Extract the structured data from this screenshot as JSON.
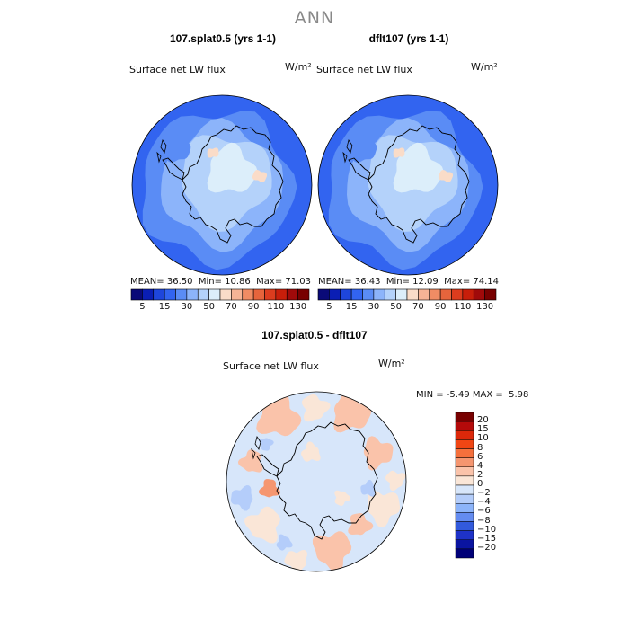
{
  "figure": {
    "title": "ANN"
  },
  "panels": [
    {
      "title": "107.splat0.5 (yrs 1-1)",
      "variable": "Surface net LW flux",
      "units": "W/m²",
      "stats": {
        "mean_label": "MEAN=",
        "mean": "36.50",
        "min_label": "Min=",
        "min": "10.86",
        "max_label": "Max=",
        "max": "71.03"
      }
    },
    {
      "title": "dflt107 (yrs 1-1)",
      "variable": "Surface net LW flux",
      "units": "W/m²",
      "stats": {
        "mean_label": "MEAN=",
        "mean": "36.43",
        "min_label": "Min=",
        "min": "12.09",
        "max_label": "Max=",
        "max": "74.14"
      }
    },
    {
      "title": "107.splat0.5 - dflt107",
      "variable": "Surface net LW flux",
      "units": "W/m²",
      "stats": {
        "min_label": "MIN =",
        "min": "-5.49",
        "max_label": "MAX =",
        "max": "5.98"
      }
    }
  ],
  "chart_data": [
    {
      "type": "heatmap",
      "projection": "south-polar-stereographic",
      "title": "107.splat0.5 (yrs 1-1)",
      "variable": "Surface net LW flux",
      "units": "W/m²",
      "mean": 36.5,
      "min": 10.86,
      "max": 71.03,
      "colorbar": {
        "orientation": "horizontal",
        "levels": [
          5,
          10,
          15,
          20,
          30,
          40,
          50,
          60,
          70,
          80,
          90,
          100,
          110,
          120,
          130
        ],
        "tick_labels": [
          "5",
          "15",
          "30",
          "50",
          "70",
          "90",
          "110",
          "130"
        ],
        "colors": [
          "#0a0a78",
          "#0a1eb4",
          "#1e46dc",
          "#3264f0",
          "#5a8cf5",
          "#8cb4fa",
          "#b4d2fa",
          "#dceefa",
          "#fadcc8",
          "#f5b496",
          "#f08c64",
          "#e6643c",
          "#dc3c1e",
          "#c81e0a",
          "#a00a0a",
          "#780000"
        ]
      }
    },
    {
      "type": "heatmap",
      "projection": "south-polar-stereographic",
      "title": "dflt107 (yrs 1-1)",
      "variable": "Surface net LW flux",
      "units": "W/m²",
      "mean": 36.43,
      "min": 12.09,
      "max": 74.14,
      "colorbar": {
        "orientation": "horizontal",
        "levels": [
          5,
          10,
          15,
          20,
          30,
          40,
          50,
          60,
          70,
          80,
          90,
          100,
          110,
          120,
          130
        ],
        "tick_labels": [
          "5",
          "15",
          "30",
          "50",
          "70",
          "90",
          "110",
          "130"
        ],
        "colors": [
          "#0a0a78",
          "#0a1eb4",
          "#1e46dc",
          "#3264f0",
          "#5a8cf5",
          "#8cb4fa",
          "#b4d2fa",
          "#dceefa",
          "#fadcc8",
          "#f5b496",
          "#f08c64",
          "#e6643c",
          "#dc3c1e",
          "#c81e0a",
          "#a00a0a",
          "#780000"
        ]
      }
    },
    {
      "type": "heatmap",
      "projection": "south-polar-stereographic",
      "title": "107.splat0.5 - dflt107",
      "variable": "Surface net LW flux",
      "units": "W/m²",
      "min": -5.49,
      "max": 5.98,
      "colorbar": {
        "orientation": "vertical",
        "levels": [
          20,
          15,
          10,
          8,
          6,
          4,
          2,
          0,
          -2,
          -4,
          -6,
          -8,
          -10,
          -15,
          -20
        ],
        "tick_labels": [
          "20",
          "15",
          "10",
          "8",
          "6",
          "4",
          "2",
          "0",
          "−2",
          "−4",
          "−6",
          "−8",
          "−10",
          "−15",
          "−20"
        ],
        "colors": [
          "#780000",
          "#b40a0a",
          "#dc280a",
          "#f04614",
          "#f5703c",
          "#f59670",
          "#fac3aa",
          "#fae6d7",
          "#d7e6fa",
          "#b4cdfa",
          "#8cb4fa",
          "#648cf0",
          "#325adc",
          "#1e32c8",
          "#0a14a0",
          "#000078"
        ]
      }
    }
  ]
}
